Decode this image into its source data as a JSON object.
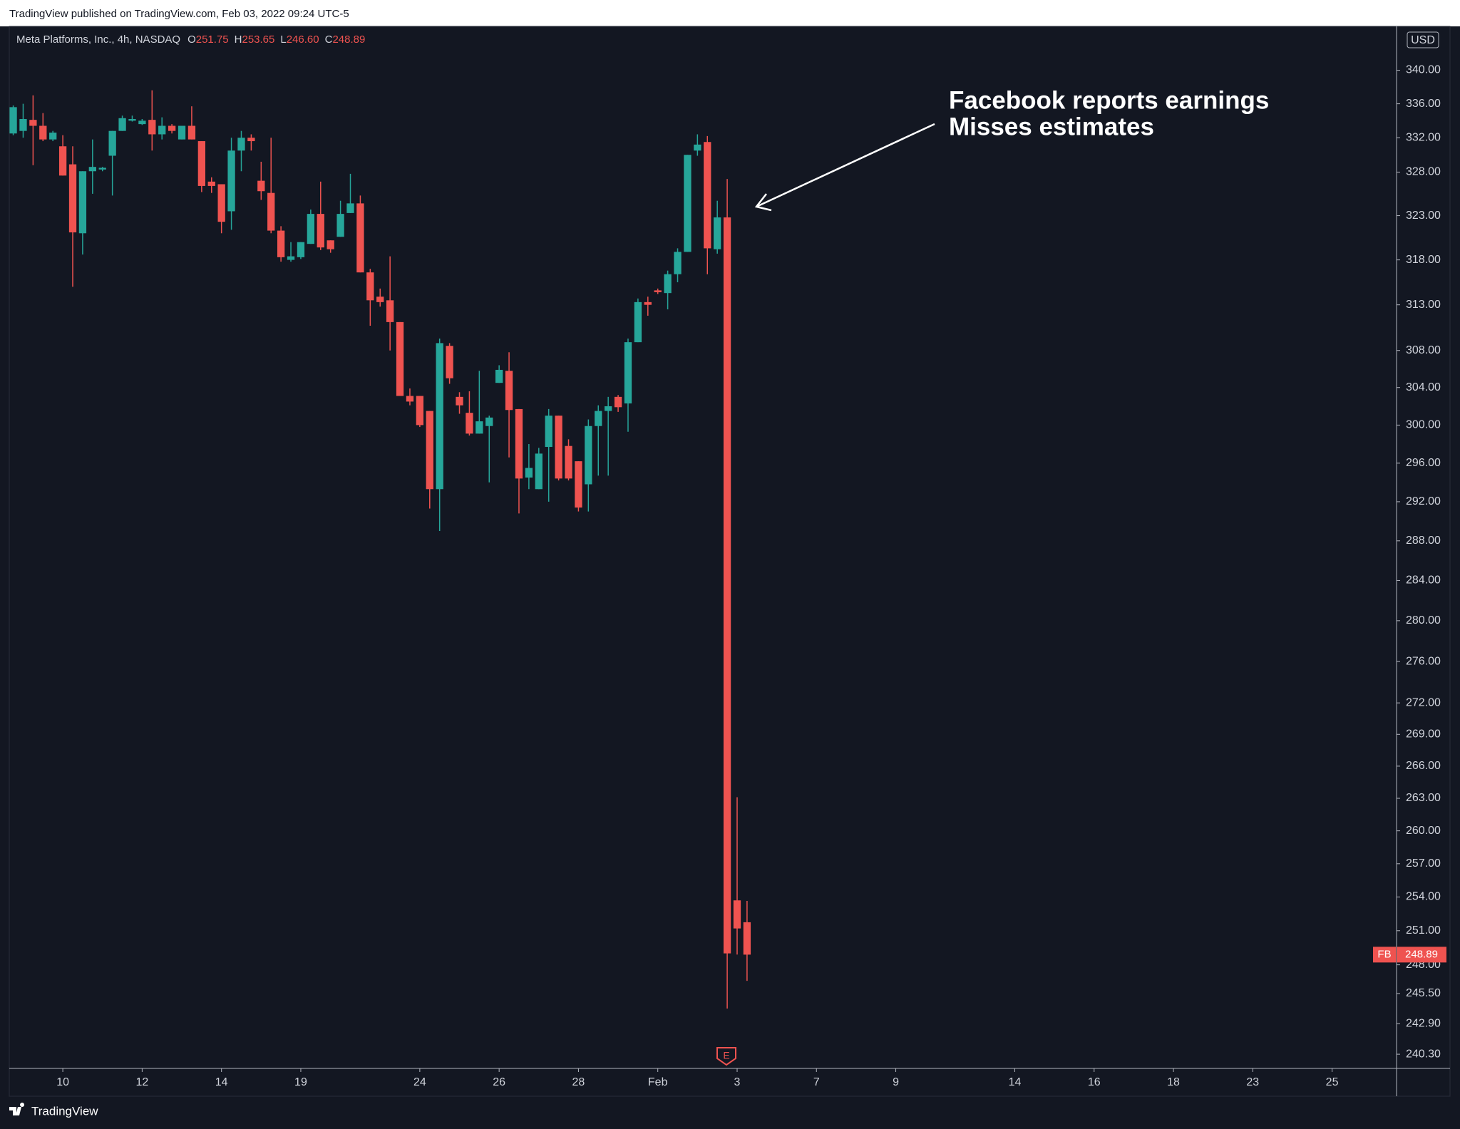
{
  "header": {
    "published": "TradingView published on TradingView.com, Feb 03, 2022 09:24 UTC-5"
  },
  "chart_data": {
    "type": "candlestick",
    "symbol": "Meta Platforms, Inc., 4h, NASDAQ",
    "ohlc_legend": [
      {
        "label": "O",
        "value": "251.75"
      },
      {
        "label": "H",
        "value": "253.65"
      },
      {
        "label": "L",
        "value": "246.60"
      },
      {
        "label": "C",
        "value": "248.89"
      }
    ],
    "open": [
      332.5,
      332.8,
      334.1,
      333.4,
      331.8,
      331,
      328.9,
      321,
      328.1,
      328.3,
      329.9,
      332.8,
      334,
      333.6,
      334.1,
      332.4,
      333.4,
      331.8,
      333.4,
      331.6,
      326.9,
      326.6,
      323.5,
      330.5,
      332,
      327,
      325.6,
      321.3,
      318,
      318.3,
      319.8,
      323.2,
      320.2,
      320.6,
      323.3,
      324.4,
      316.6,
      313.9,
      313.5,
      311.1,
      303.1,
      303.1,
      301.5,
      293.3,
      308.5,
      303,
      301.3,
      299.1,
      299.9,
      304.5,
      305.8,
      301.7,
      294.5,
      293.3,
      297.7,
      301,
      297.8,
      296.2,
      293.8,
      299.9,
      301.5,
      303,
      302.3,
      308.9,
      313.3,
      314.6,
      314.3,
      316.4,
      318.9,
      330.5,
      331.5,
      319.2,
      322.8,
      253.7,
      251.75
    ],
    "high": [
      335.8,
      336,
      337,
      334.9,
      332.8,
      332.3,
      331,
      328.1,
      331.8,
      328.6,
      332.8,
      334.6,
      334.6,
      334.2,
      337.6,
      334.4,
      333.6,
      333.4,
      335.7,
      331.6,
      327.4,
      326.6,
      332,
      332.8,
      332.4,
      329.2,
      332,
      321.8,
      320,
      320,
      323.7,
      326.9,
      320.2,
      324.7,
      327.8,
      325.3,
      317,
      314.8,
      318.4,
      311.1,
      303.9,
      303.1,
      301.5,
      309.3,
      308.8,
      303.5,
      303.6,
      305.8,
      301,
      306.4,
      307.8,
      301.7,
      298,
      297.6,
      301.7,
      301,
      298.5,
      296.2,
      300.6,
      302.1,
      303,
      303.2,
      309.3,
      313.7,
      313.9,
      314.8,
      316.8,
      319.3,
      330,
      332.4,
      332.2,
      324.7,
      327.2,
      263.1,
      253.65
    ],
    "low": [
      332.3,
      332,
      328.8,
      331.6,
      331.6,
      327.6,
      315,
      318.6,
      325.5,
      328.1,
      325.3,
      332.8,
      333.9,
      333.5,
      330.5,
      331.8,
      332.5,
      331.8,
      331.8,
      325.7,
      325.6,
      321,
      321.4,
      328.1,
      330.5,
      324.8,
      321,
      317.8,
      317.8,
      318.1,
      319.8,
      319.1,
      318.8,
      320.6,
      323.3,
      316.6,
      310.7,
      312.8,
      308,
      303.1,
      302.1,
      299.8,
      291.3,
      289,
      304.4,
      301.2,
      298.9,
      299.1,
      294,
      304.5,
      296.6,
      290.8,
      293.3,
      293.3,
      292,
      294.2,
      294.2,
      291,
      291,
      294.7,
      294.7,
      301.4,
      299.3,
      308.9,
      311.8,
      314.2,
      312.5,
      315.5,
      318.9,
      329.9,
      316.4,
      318.7,
      244.2,
      248.9,
      246.6
    ],
    "close": [
      335.6,
      334.2,
      333.4,
      331.8,
      332.6,
      327.6,
      321.1,
      328.1,
      328.6,
      328.5,
      332.8,
      334.3,
      334.2,
      334,
      332.4,
      333.4,
      332.8,
      333.4,
      331.8,
      326.4,
      326.4,
      322.3,
      330.5,
      332,
      331.6,
      325.8,
      321.3,
      318.3,
      318.4,
      320,
      323.2,
      319.4,
      319.2,
      323.2,
      324.4,
      316.6,
      313.5,
      313.3,
      311.1,
      303.1,
      302.5,
      300,
      293.3,
      308.8,
      305,
      302.1,
      299.1,
      300.4,
      300.8,
      305.9,
      301.6,
      294.4,
      295.5,
      297,
      301,
      294.4,
      294.4,
      291.4,
      299.9,
      301.5,
      302,
      301.9,
      308.9,
      313.3,
      313,
      314.4,
      316.4,
      318.9,
      330,
      331.2,
      319.3,
      322.8,
      249,
      251.2,
      248.89
    ],
    "up_color": "#26a69a",
    "down_color": "#ef5350",
    "log_scale": true,
    "ylim": [
      239.1,
      345.3
    ],
    "yticks": [
      {
        "value": 340,
        "label": "340.00"
      },
      {
        "value": 336,
        "label": "336.00"
      },
      {
        "value": 332,
        "label": "332.00"
      },
      {
        "value": 328,
        "label": "328.00"
      },
      {
        "value": 323,
        "label": "323.00"
      },
      {
        "value": 318,
        "label": "318.00"
      },
      {
        "value": 313,
        "label": "313.00"
      },
      {
        "value": 308,
        "label": "308.00"
      },
      {
        "value": 304,
        "label": "304.00"
      },
      {
        "value": 300,
        "label": "300.00"
      },
      {
        "value": 296,
        "label": "296.00"
      },
      {
        "value": 292,
        "label": "292.00"
      },
      {
        "value": 288,
        "label": "288.00"
      },
      {
        "value": 284,
        "label": "284.00"
      },
      {
        "value": 280,
        "label": "280.00"
      },
      {
        "value": 276,
        "label": "276.00"
      },
      {
        "value": 272,
        "label": "272.00"
      },
      {
        "value": 269,
        "label": "269.00"
      },
      {
        "value": 266,
        "label": "266.00"
      },
      {
        "value": 263,
        "label": "263.00"
      },
      {
        "value": 260,
        "label": "260.00"
      },
      {
        "value": 257,
        "label": "257.00"
      },
      {
        "value": 254,
        "label": "254.00"
      },
      {
        "value": 251,
        "label": "251.00"
      },
      {
        "value": 248,
        "label": "248.00"
      },
      {
        "value": 245.5,
        "label": "245.50"
      },
      {
        "value": 242.9,
        "label": "242.90"
      },
      {
        "value": 240.3,
        "label": "240.30"
      }
    ],
    "currency": "USD",
    "xlim": [
      -0.4,
      139.5
    ],
    "xticks": [
      {
        "value": 5,
        "label": "10"
      },
      {
        "value": 13,
        "label": "12"
      },
      {
        "value": 21,
        "label": "14"
      },
      {
        "value": 29,
        "label": "19"
      },
      {
        "value": 41,
        "label": "24"
      },
      {
        "value": 49,
        "label": "26"
      },
      {
        "value": 57,
        "label": "28"
      },
      {
        "value": 65,
        "label": "Feb"
      },
      {
        "value": 73,
        "label": "3"
      },
      {
        "value": 81,
        "label": "7"
      },
      {
        "value": 89,
        "label": "9"
      },
      {
        "value": 101,
        "label": "14"
      },
      {
        "value": 109,
        "label": "16"
      },
      {
        "value": 117,
        "label": "18"
      },
      {
        "value": 125,
        "label": "23"
      },
      {
        "value": 133,
        "label": "25"
      }
    ],
    "last_price": {
      "symbol": "FB",
      "value": 248.89
    },
    "annotation": [
      "Facebook reports earnings",
      "Misses estimates"
    ],
    "earnings_marker": "E"
  },
  "footer": {
    "brand": "TradingView"
  }
}
